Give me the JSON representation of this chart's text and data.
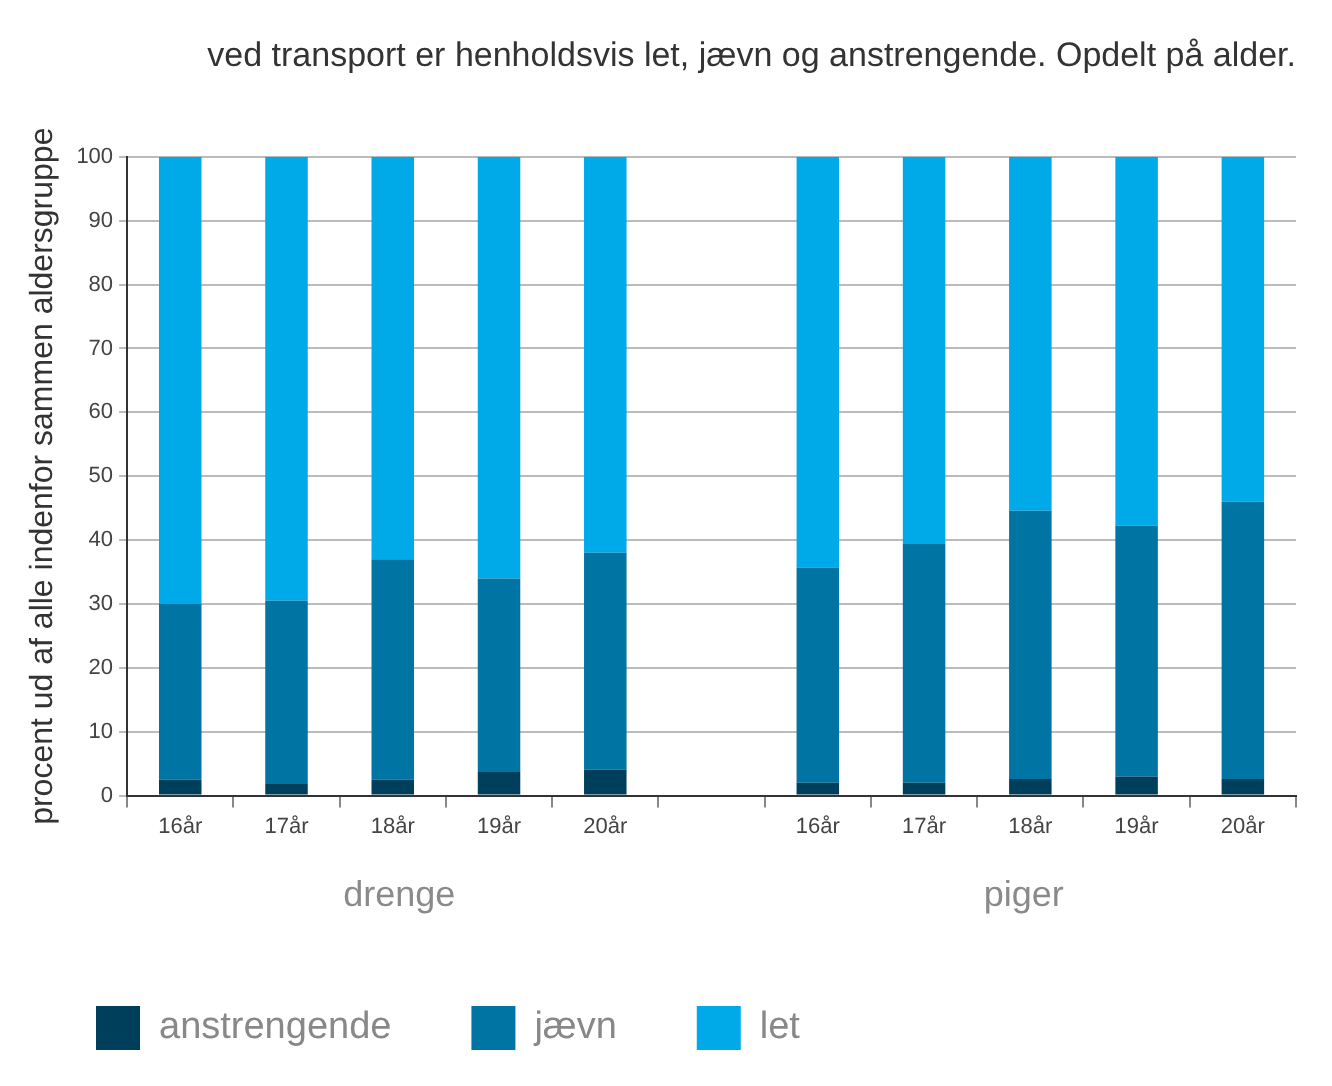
{
  "chart_data": {
    "type": "bar",
    "stacked": true,
    "title": "ved transport er henholdsvis let, jævn og anstrengende. Opdelt på alder.",
    "ylabel": "procent ud af alle indenfor sammen aldersgruppe",
    "categories": [
      "16år",
      "17år",
      "18år",
      "19år",
      "20år",
      null,
      "16år",
      "17år",
      "18år",
      "19år",
      "20år"
    ],
    "series": [
      {
        "name": "anstrengende",
        "color": "#003f5c",
        "values": [
          2.5,
          1.8,
          2.5,
          3.7,
          4.1,
          null,
          2.0,
          2.0,
          2.6,
          3.0,
          2.6
        ]
      },
      {
        "name": "jævn",
        "color": "#0074a2",
        "values": [
          27.5,
          28.7,
          34.5,
          30.3,
          33.9,
          null,
          33.7,
          37.4,
          42.0,
          39.3,
          43.4
        ]
      },
      {
        "name": "let",
        "color": "#00a9e8",
        "values": [
          70.0,
          69.5,
          63.0,
          66.0,
          62.0,
          null,
          64.3,
          60.6,
          55.4,
          57.7,
          54.0
        ]
      }
    ],
    "ylim": [
      0,
      100
    ],
    "yticks": [
      0,
      10,
      20,
      30,
      40,
      50,
      60,
      70,
      80,
      90,
      100
    ],
    "grid": "y",
    "legend": "bottom",
    "annotations": [
      "drenge",
      "piger"
    ]
  }
}
